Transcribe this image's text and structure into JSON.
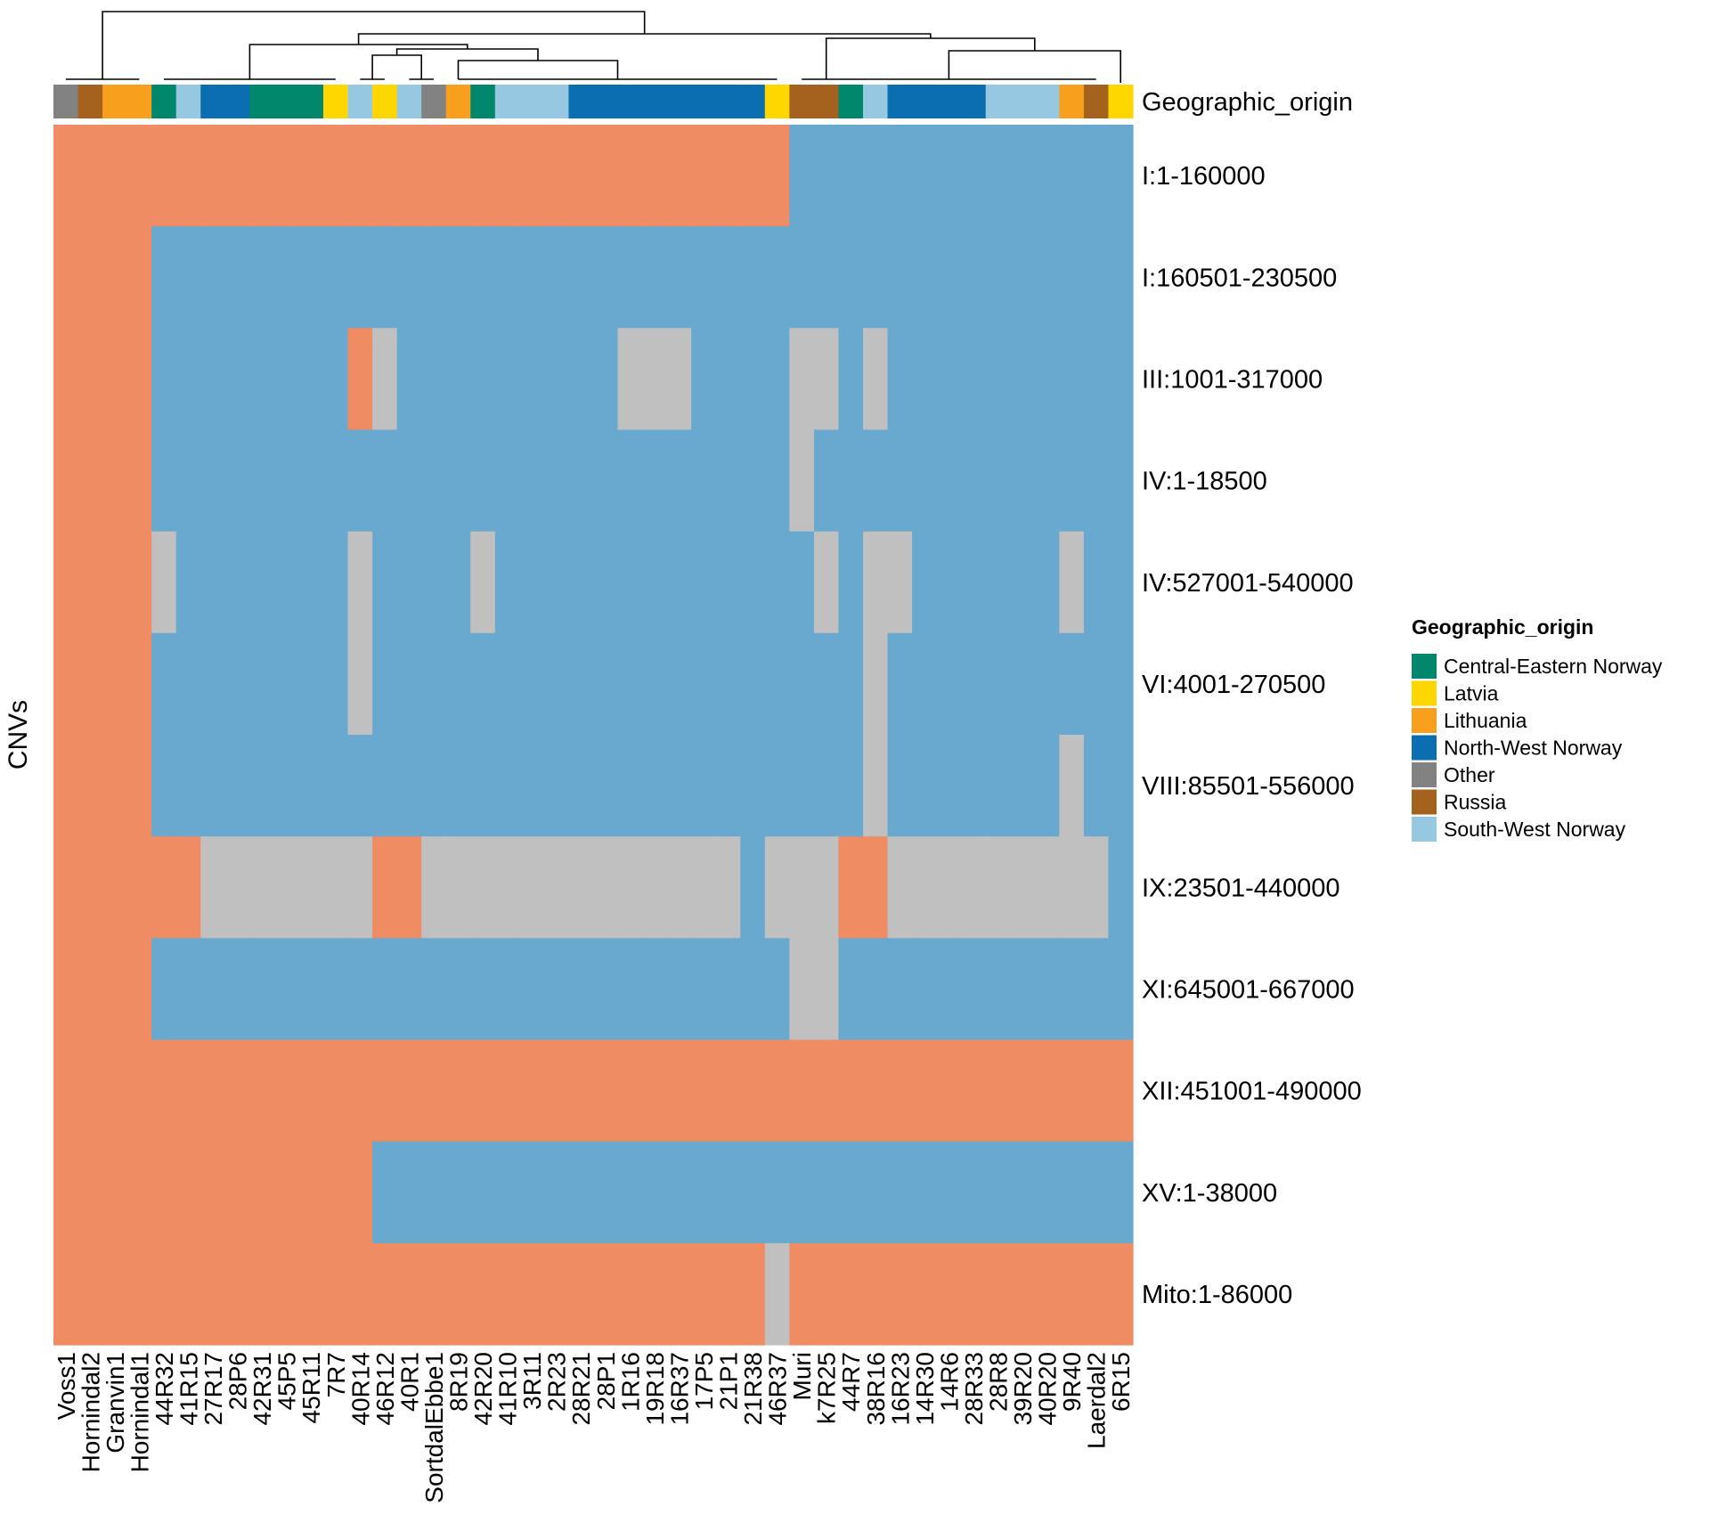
{
  "chart_data": {
    "type": "heatmap",
    "title": "",
    "ylabel": "CNVs",
    "annotation_label": "Geographic_origin",
    "legend": {
      "title": "Geographic_origin",
      "placement": "right",
      "entries": [
        {
          "key": "CEN",
          "label": "Central-Eastern Norway",
          "color": "#00876C"
        },
        {
          "key": "LV",
          "label": "Latvia",
          "color": "#FFD700"
        },
        {
          "key": "LT",
          "label": "Lithuania",
          "color": "#F8A01E"
        },
        {
          "key": "NWN",
          "label": "North-West Norway",
          "color": "#0A6EB0"
        },
        {
          "key": "OT",
          "label": "Other",
          "color": "#828282"
        },
        {
          "key": "RU",
          "label": "Russia",
          "color": "#A5611E"
        },
        {
          "key": "SWN",
          "label": "South-West Norway",
          "color": "#96C8E1"
        }
      ]
    },
    "colors": {
      "A": "#F08C64",
      "B": "#69A8CF",
      "C": "#C0C0C0"
    },
    "samples": [
      "Voss1",
      "Hornindal2",
      "Granvin1",
      "Hornindal1",
      "44R32",
      "41R15",
      "27R17",
      "28P6",
      "42R31",
      "45P5",
      "45R11",
      "7R7",
      "40R14",
      "46R12",
      "40R1",
      "SortdalEbbe1",
      "8R19",
      "42R20",
      "41R10",
      "3R11",
      "2R23",
      "28R21",
      "28P1",
      "1R16",
      "19R18",
      "16R37",
      "17P5",
      "21P1",
      "21R38",
      "46R37",
      "Muri",
      "k7R25",
      "44R7",
      "38R16",
      "16R23",
      "14R30",
      "14R6",
      "28R33",
      "28R8",
      "39R20",
      "40R20",
      "9R40",
      "Laerdal2",
      "6R15"
    ],
    "origins": [
      "OT",
      "RU",
      "LT",
      "LT",
      "CEN",
      "SWN",
      "NWN",
      "NWN",
      "CEN",
      "CEN",
      "CEN",
      "LV",
      "SWN",
      "LV",
      "SWN",
      "OT",
      "LT",
      "CEN",
      "SWN",
      "SWN",
      "SWN",
      "NWN",
      "NWN",
      "NWN",
      "NWN",
      "NWN",
      "NWN",
      "NWN",
      "NWN",
      "LV",
      "RU",
      "RU",
      "CEN",
      "SWN",
      "NWN",
      "NWN",
      "NWN",
      "NWN",
      "SWN",
      "SWN",
      "SWN",
      "LT",
      "RU",
      "LV"
    ],
    "cnvs": [
      {
        "label": "I:1-160000",
        "values": "AAAAAAAAAAAAAAAAAAAAAAAAAAAAAABBBBBBBBBBBBBB"
      },
      {
        "label": "I:160501-230500",
        "values": "AAAABBBBBBBBBBBBBBBBBBBBBBBBBBBBBBBBBBBBBBBB"
      },
      {
        "label": "III:1001-317000",
        "values": "AAAABBBBBBBBACBBBBBBBBBCCCBBBBCCBCBBBBBBBBBB"
      },
      {
        "label": "IV:1-18500",
        "values": "AAAABBBBBBBBBBBBBBBBBBBBBBBBBBCBBBBBBBBBBBBB"
      },
      {
        "label": "IV:527001-540000",
        "values": "AAAACBBBBBBBCBBBBCBBBBBBBBBBBBBCBCCBBBBBBCBB"
      },
      {
        "label": "VI:4001-270500",
        "values": "AAAABBBBBBBBCBBBBBBBBBBBBBBBBBBBBCBBBBBBBBBB"
      },
      {
        "label": "VIII:85501-556000",
        "values": "AAAABBBBBBBBBBBBBBBBBBBBBBBBBBBBBCBBBBBBBCBB"
      },
      {
        "label": "IX:23501-440000",
        "values": "AAAAAACCCCCCCAACCCCCCCCCCCCCBCCCAACCCCCCCCCB"
      },
      {
        "label": "XI:645001-667000",
        "values": "AAAABBBBBBBBBBBBBBBBBBBBBBBBBBCCBBBBBBBBBBBB"
      },
      {
        "label": "XII:451001-490000",
        "values": "AAAAAAAAAAAAAAAAAAAAAAAAAAAAAAAAAAAAAAAAAAAA"
      },
      {
        "label": "XV:1-38000",
        "values": "AAAAAAAAAAAAABBBBBBBBBBBBBBBBBBBBBBBBBBBBBBB"
      },
      {
        "label": "Mito:1-86000",
        "values": "AAAAAAAAAAAAAAAAAAAAAAAAAAAAACAAAAAAAAAAAAAA"
      }
    ]
  }
}
